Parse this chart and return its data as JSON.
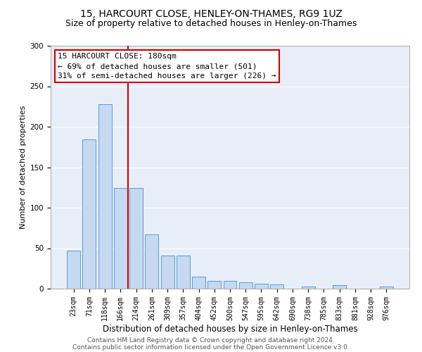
{
  "title1": "15, HARCOURT CLOSE, HENLEY-ON-THAMES, RG9 1UZ",
  "title2": "Size of property relative to detached houses in Henley-on-Thames",
  "xlabel": "Distribution of detached houses by size in Henley-on-Thames",
  "ylabel": "Number of detached properties",
  "categories": [
    "23sqm",
    "71sqm",
    "118sqm",
    "166sqm",
    "214sqm",
    "261sqm",
    "309sqm",
    "357sqm",
    "404sqm",
    "452sqm",
    "500sqm",
    "547sqm",
    "595sqm",
    "642sqm",
    "690sqm",
    "738sqm",
    "785sqm",
    "833sqm",
    "881sqm",
    "928sqm",
    "976sqm"
  ],
  "values": [
    47,
    184,
    228,
    124,
    124,
    67,
    41,
    41,
    15,
    10,
    10,
    8,
    6,
    5,
    0,
    3,
    0,
    4,
    0,
    0,
    3
  ],
  "bar_color": "#c5d9f0",
  "bar_edge_color": "#5b9bd5",
  "vline_x": 3.5,
  "vline_color": "#cc0000",
  "annotation_line1": "15 HARCOURT CLOSE: 180sqm",
  "annotation_line2": "← 69% of detached houses are smaller (501)",
  "annotation_line3": "31% of semi-detached houses are larger (226) →",
  "annotation_box_fc": "white",
  "annotation_box_ec": "#cc0000",
  "ylim": [
    0,
    300
  ],
  "yticks": [
    0,
    50,
    100,
    150,
    200,
    250,
    300
  ],
  "footer1": "Contains HM Land Registry data © Crown copyright and database right 2024.",
  "footer2": "Contains public sector information licensed under the Open Government Licence v3.0.",
  "bg_color": "#e8eef8",
  "grid_color": "white",
  "title1_fontsize": 10,
  "title2_fontsize": 9,
  "xlabel_fontsize": 8.5,
  "ylabel_fontsize": 8,
  "tick_fontsize": 7,
  "annotation_fontsize": 8,
  "footer_fontsize": 6.5
}
